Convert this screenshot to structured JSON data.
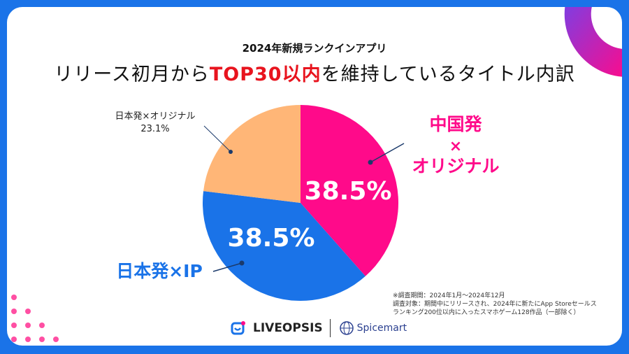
{
  "header": {
    "subtitle": "2024年新規ランクインアプリ",
    "title_pre": "リリース初月から",
    "title_highlight": "TOP30以内",
    "title_post": "を維持しているタイトル内訳"
  },
  "chart_data": {
    "type": "pie",
    "title": "リリース初月からTOP30以内を維持しているタイトル内訳",
    "slices": [
      {
        "label": "中国発×オリジナル",
        "label_lines": [
          "中国発",
          "×",
          "オリジナル"
        ],
        "value": 38.5,
        "value_label": "38.5%",
        "color": "#ff0a8a"
      },
      {
        "label": "日本発×IP",
        "value": 38.5,
        "value_label": "38.5%",
        "color": "#1a73e8"
      },
      {
        "label": "日本発×オリジナル",
        "value": 23.1,
        "value_label": "23.1%",
        "color": "#ffb677"
      }
    ]
  },
  "footnote": [
    "※調査期間：2024年1月～2024年12月",
    "調査対象：期間中にリリースされ、2024年に新たにApp Storeセールス",
    "ランキング200位以内に入ったスマホゲーム128作品（一部除く）"
  ],
  "logos": {
    "left": "LIVEOPSIS",
    "right": "Spicemart"
  }
}
